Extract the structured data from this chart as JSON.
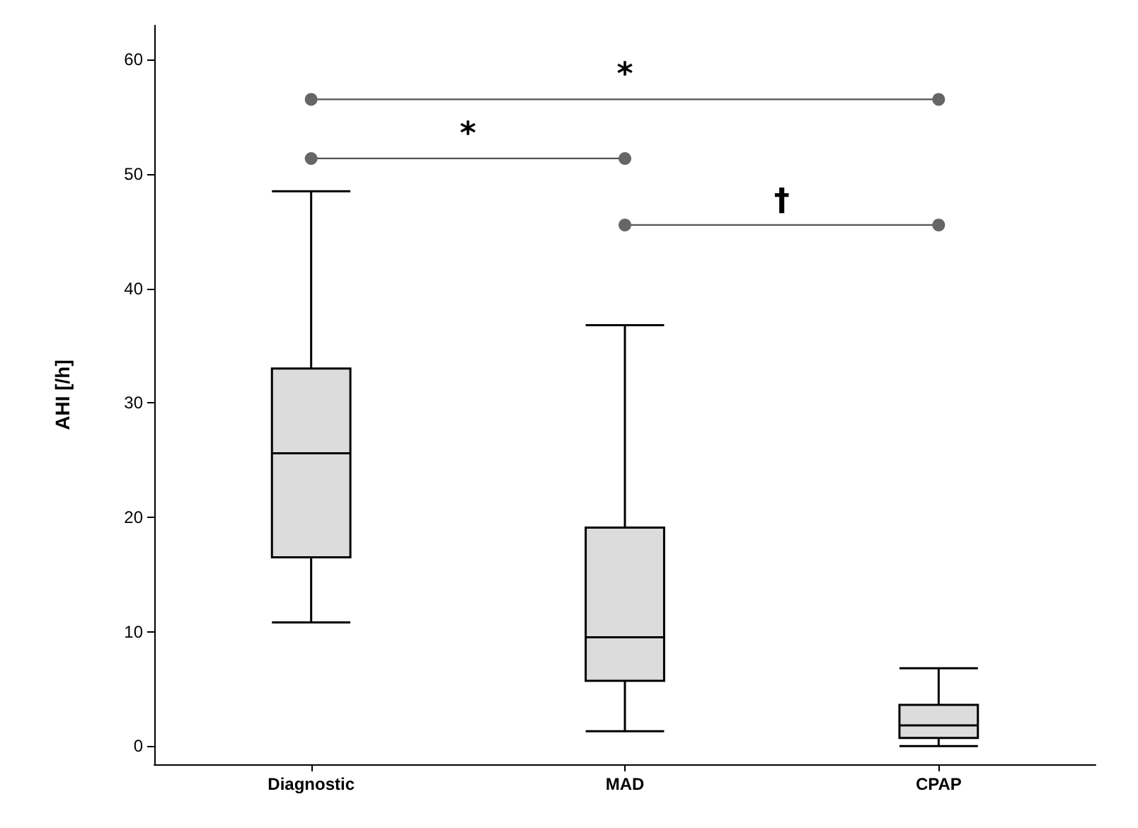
{
  "chart_data": {
    "type": "box",
    "categories": [
      "Diagnostic",
      "MAD",
      "CPAP"
    ],
    "boxes": [
      {
        "low": 10.8,
        "q1": 16.5,
        "median": 25.6,
        "q3": 33,
        "high": 48.5
      },
      {
        "low": 1.3,
        "q1": 5.7,
        "median": 9.5,
        "q3": 19.1,
        "high": 36.8
      },
      {
        "low": 0,
        "q1": 0.7,
        "median": 1.8,
        "q3": 3.6,
        "high": 6.8
      }
    ],
    "color": "#dcdcdc",
    "ylabel": "AHI [/h]",
    "ylim": [
      -1.6,
      63
    ],
    "yticks": [
      0,
      10,
      20,
      30,
      40,
      50,
      60
    ],
    "grid": false,
    "annotations": [
      "*",
      "*",
      "†"
    ]
  }
}
